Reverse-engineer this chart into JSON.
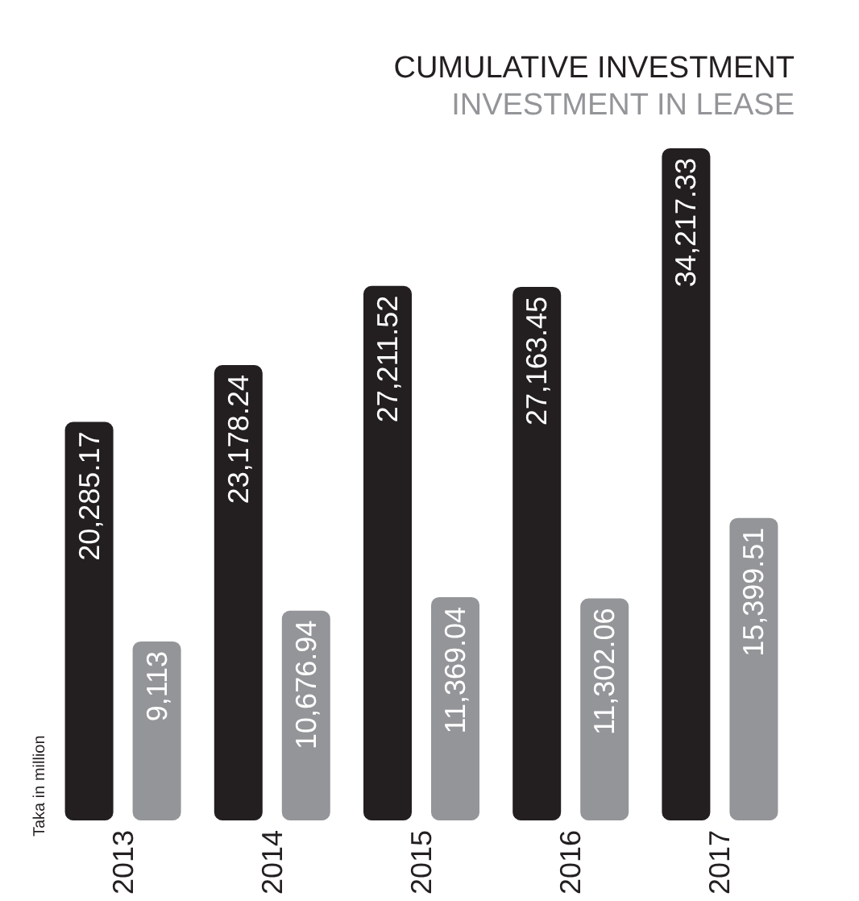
{
  "chart_data": {
    "type": "bar",
    "ylabel": "Taka in million",
    "categories": [
      "2013",
      "2014",
      "2015",
      "2016",
      "2017"
    ],
    "series": [
      {
        "name": "CUMULATIVE INVESTMENT",
        "color": "#231f20",
        "values": [
          20285.17,
          23178.24,
          27211.52,
          27163.45,
          34217.33
        ],
        "value_labels": [
          "20,285.17",
          "23,178.24",
          "27,211.52",
          "27,163.45",
          "34,217.33"
        ]
      },
      {
        "name": "INVESTMENT IN LEASE",
        "color": "#939598",
        "values": [
          9113,
          10676.94,
          11369.04,
          11302.06,
          15399.51
        ],
        "value_labels": [
          "9,113",
          "10,676.94",
          "11,369.04",
          "11,302.06",
          "15,399.51"
        ]
      }
    ],
    "legend": "top right"
  }
}
